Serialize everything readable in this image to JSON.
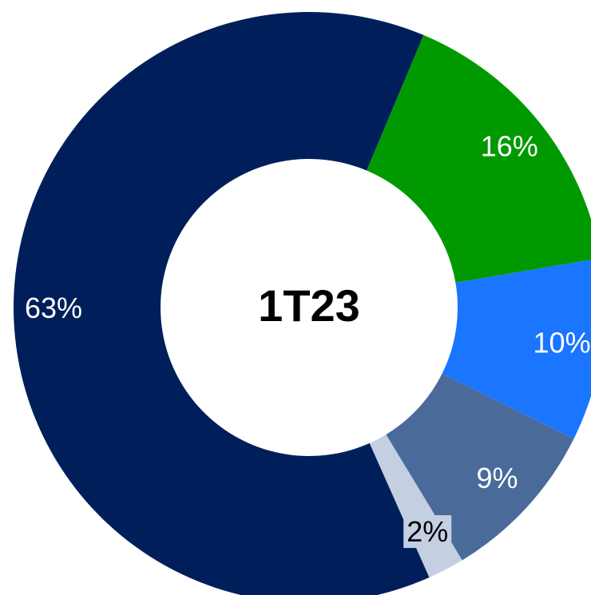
{
  "chart_data": {
    "type": "donut",
    "center_label": "1T23",
    "values": [
      16,
      10,
      9,
      2,
      63
    ],
    "value_labels": [
      "16%",
      "10%",
      "9%",
      "2%",
      "63%"
    ],
    "colors": [
      "#009a00",
      "#1a75ff",
      "#4a6a9a",
      "#c5cfe2",
      "#001f5a"
    ],
    "label_colors": [
      "#ffffff",
      "#ffffff",
      "#ffffff",
      "#000000",
      "#ffffff"
    ],
    "start_angle": 22.8
  }
}
